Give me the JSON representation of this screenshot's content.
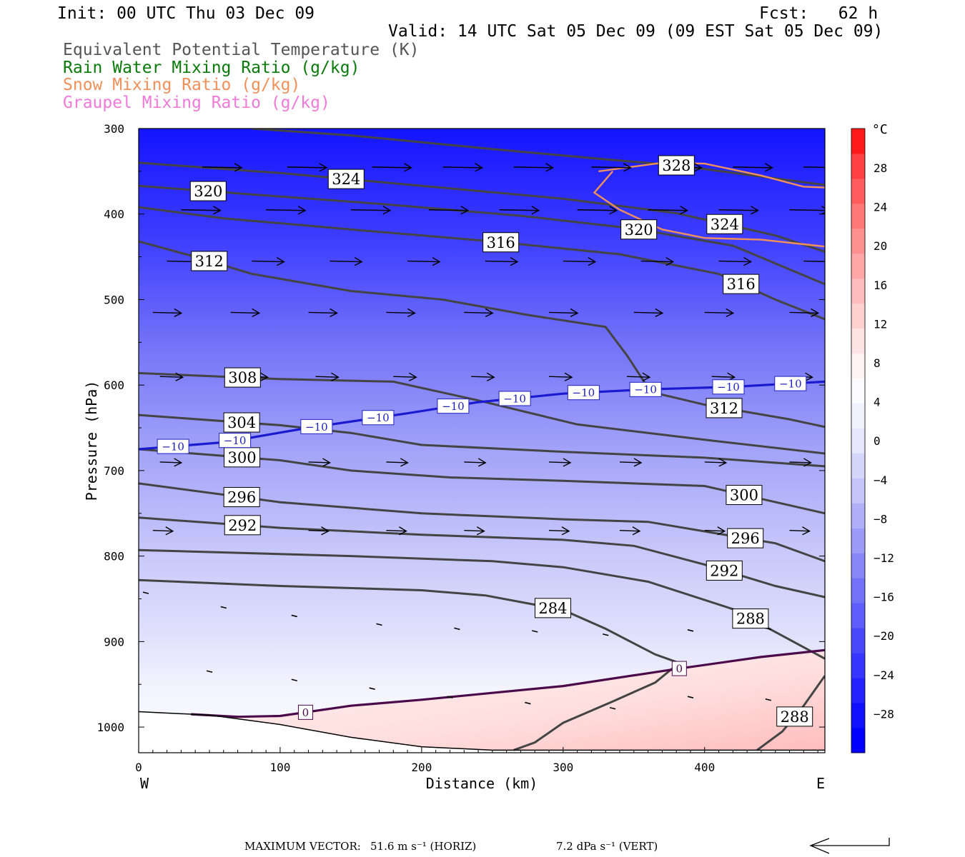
{
  "header": {
    "init": "Init: 00 UTC Thu 03 Dec 09",
    "fcst": "Fcst:   62 h",
    "valid": "Valid: 14 UTC Sat 05 Dec 09 (09 EST Sat 05 Dec 09)",
    "legend": [
      {
        "text": "Equivalent Potential Temperature (K)",
        "color": "#555555"
      },
      {
        "text": "Rain Water Mixing Ratio (g/kg)",
        "color": "#0a7a0a"
      },
      {
        "text": "Snow Mixing Ratio (g/kg)",
        "color": "#f0905a"
      },
      {
        "text": "Graupel Mixing Ratio (g/kg)",
        "color": "#f07ad8"
      }
    ]
  },
  "axes": {
    "ylabel": "Pressure (hPa)",
    "xlabel": "Distance (km)",
    "west": "W",
    "east": "E"
  },
  "colorbar": {
    "unit": "°C",
    "labels": [
      "28",
      "24",
      "20",
      "16",
      "12",
      "8",
      "4",
      "0",
      "−4",
      "−8",
      "−12",
      "−16",
      "−20",
      "−24",
      "−28"
    ],
    "colors": [
      "#0000ff",
      "#1010ff",
      "#2222ff",
      "#3535ff",
      "#4949fb",
      "#5d5df9",
      "#7272f8",
      "#8787f8",
      "#9c9cf8",
      "#b0b0f9",
      "#c4c4fa",
      "#d6d6fb",
      "#e6e6fc",
      "#f2f2fd",
      "#fafaff",
      "#fff2f2",
      "#ffe4e4",
      "#ffd2d2",
      "#ffbcbc",
      "#ffa6a6",
      "#ff9090",
      "#ff7777",
      "#ff5d5d",
      "#ff4040",
      "#ff1a1a"
    ]
  },
  "footer": {
    "max_vector_label": "MAXIMUM VECTOR:",
    "horiz": "51.6 m s⁻¹ (HORIZ)",
    "vert": "7.2 dPa s⁻¹ (VERT)"
  },
  "chart_data": {
    "type": "line",
    "title": "Equivalent Potential Temperature (K)",
    "xlabel": "Distance (km)",
    "ylabel": "Pressure (hPa)",
    "xlim": [
      0,
      485
    ],
    "ylim": [
      300,
      1030
    ],
    "y_inverted": true,
    "x_ticks": [
      0,
      100,
      200,
      300,
      400
    ],
    "y_ticks": [
      300,
      400,
      500,
      600,
      700,
      800,
      900,
      1000
    ],
    "terrain": [
      [
        0,
        982
      ],
      [
        50,
        986
      ],
      [
        100,
        997
      ],
      [
        150,
        1012
      ],
      [
        200,
        1023
      ],
      [
        250,
        1027
      ],
      [
        300,
        1027
      ],
      [
        485,
        1027
      ]
    ],
    "theta_e_contours": [
      {
        "label": "284",
        "points": [
          [
            0,
            828
          ],
          [
            100,
            835
          ],
          [
            200,
            840
          ],
          [
            245,
            846
          ],
          [
            300,
            863
          ],
          [
            330,
            885
          ],
          [
            365,
            915
          ],
          [
            382,
            925
          ],
          [
            365,
            948
          ],
          [
            335,
            970
          ],
          [
            300,
            995
          ],
          [
            280,
            1018
          ],
          [
            265,
            1027
          ]
        ]
      },
      {
        "label": "288",
        "points": [
          [
            0,
            793
          ],
          [
            150,
            800
          ],
          [
            250,
            806
          ],
          [
            300,
            813
          ],
          [
            360,
            830
          ],
          [
            420,
            862
          ],
          [
            485,
            920
          ]
        ]
      },
      {
        "label": "288",
        "points": [
          [
            437,
            1027
          ],
          [
            455,
            1005
          ],
          [
            470,
            975
          ],
          [
            485,
            940
          ]
        ]
      },
      {
        "label": "292",
        "points": [
          [
            0,
            755
          ],
          [
            100,
            767
          ],
          [
            200,
            775
          ],
          [
            300,
            781
          ],
          [
            350,
            788
          ],
          [
            400,
            810
          ],
          [
            450,
            835
          ],
          [
            485,
            848
          ]
        ]
      },
      {
        "label": "296",
        "points": [
          [
            0,
            715
          ],
          [
            100,
            737
          ],
          [
            200,
            750
          ],
          [
            300,
            757
          ],
          [
            360,
            760
          ],
          [
            450,
            785
          ],
          [
            485,
            806
          ]
        ]
      },
      {
        "label": "300",
        "points": [
          [
            0,
            675
          ],
          [
            100,
            688
          ],
          [
            150,
            700
          ],
          [
            220,
            708
          ],
          [
            300,
            712
          ],
          [
            400,
            718
          ],
          [
            485,
            750
          ]
        ]
      },
      {
        "label": "304",
        "points": [
          [
            0,
            635
          ],
          [
            100,
            647
          ],
          [
            150,
            656
          ],
          [
            200,
            670
          ],
          [
            300,
            678
          ],
          [
            400,
            685
          ],
          [
            485,
            695
          ]
        ]
      },
      {
        "label": "308",
        "points": [
          [
            0,
            586
          ],
          [
            100,
            593
          ],
          [
            180,
            596
          ],
          [
            240,
            618
          ],
          [
            310,
            646
          ],
          [
            400,
            664
          ],
          [
            485,
            680
          ]
        ]
      },
      {
        "label": "312",
        "points": [
          [
            0,
            432
          ],
          [
            40,
            450
          ],
          [
            80,
            470
          ],
          [
            150,
            490
          ],
          [
            215,
            500
          ],
          [
            275,
            518
          ],
          [
            330,
            532
          ],
          [
            345,
            565
          ],
          [
            362,
            608
          ],
          [
            400,
            623
          ],
          [
            460,
            640
          ],
          [
            485,
            649
          ]
        ]
      },
      {
        "label": "316",
        "points": [
          [
            0,
            392
          ],
          [
            60,
            405
          ],
          [
            150,
            418
          ],
          [
            250,
            432
          ],
          [
            340,
            447
          ],
          [
            410,
            470
          ],
          [
            450,
            500
          ],
          [
            485,
            523
          ]
        ]
      },
      {
        "label": "320",
        "points": [
          [
            0,
            367
          ],
          [
            80,
            377
          ],
          [
            170,
            388
          ],
          [
            270,
            402
          ],
          [
            350,
            417
          ],
          [
            420,
            437
          ],
          [
            485,
            482
          ]
        ]
      },
      {
        "label": "324",
        "points": [
          [
            0,
            340
          ],
          [
            100,
            352
          ],
          [
            200,
            367
          ],
          [
            300,
            382
          ],
          [
            380,
            399
          ],
          [
            450,
            425
          ],
          [
            485,
            444
          ]
        ]
      },
      {
        "label": "328",
        "points": [
          [
            80,
            300
          ],
          [
            150,
            308
          ],
          [
            250,
            324
          ],
          [
            330,
            336
          ],
          [
            380,
            343
          ],
          [
            485,
            366
          ]
        ]
      }
    ],
    "isotherm_0": {
      "label": "0",
      "points": [
        [
          37,
          985
        ],
        [
          70,
          988
        ],
        [
          100,
          987
        ],
        [
          150,
          975
        ],
        [
          200,
          968
        ],
        [
          250,
          960
        ],
        [
          300,
          952
        ],
        [
          380,
          932
        ],
        [
          440,
          918
        ],
        [
          485,
          910
        ]
      ]
    },
    "isotherm_minus10": {
      "label": "−10",
      "points": [
        [
          0,
          675
        ],
        [
          60,
          667
        ],
        [
          120,
          650
        ],
        [
          190,
          633
        ],
        [
          240,
          620
        ],
        [
          300,
          610
        ],
        [
          360,
          605
        ],
        [
          420,
          602
        ],
        [
          485,
          596
        ]
      ]
    },
    "snow_contour": {
      "points": [
        [
          325,
          350
        ],
        [
          370,
          340
        ],
        [
          400,
          341
        ],
        [
          440,
          355
        ],
        [
          470,
          368
        ],
        [
          485,
          369
        ]
      ]
    },
    "snow_contour_2": {
      "points": [
        [
          485,
          438
        ],
        [
          440,
          430
        ],
        [
          400,
          428
        ],
        [
          370,
          418
        ],
        [
          340,
          395
        ],
        [
          322,
          375
        ],
        [
          335,
          350
        ]
      ]
    },
    "vector_rows": [
      {
        "p": 345,
        "xs": [
          45,
          105,
          165,
          215,
          265,
          320,
          370,
          420,
          470
        ],
        "len": 55
      },
      {
        "p": 395,
        "xs": [
          30,
          90,
          150,
          205,
          255,
          310,
          360,
          410,
          460
        ],
        "len": 55
      },
      {
        "p": 455,
        "xs": [
          20,
          80,
          135,
          190,
          245,
          300,
          355,
          410,
          470
        ],
        "len": 45
      },
      {
        "p": 515,
        "xs": [
          10,
          65,
          120,
          175,
          230,
          290,
          350,
          400,
          460
        ],
        "len": 40
      },
      {
        "p": 590,
        "xs": [
          15,
          75,
          125,
          180,
          235,
          290,
          345,
          405,
          460
        ],
        "len": 32
      },
      {
        "p": 690,
        "xs": [
          15,
          65,
          120,
          175,
          230,
          290,
          340,
          400,
          460
        ],
        "len": 30
      },
      {
        "p": 770,
        "xs": [
          10,
          65,
          120,
          175,
          230,
          290,
          340,
          400,
          460
        ],
        "len": 28
      }
    ]
  }
}
